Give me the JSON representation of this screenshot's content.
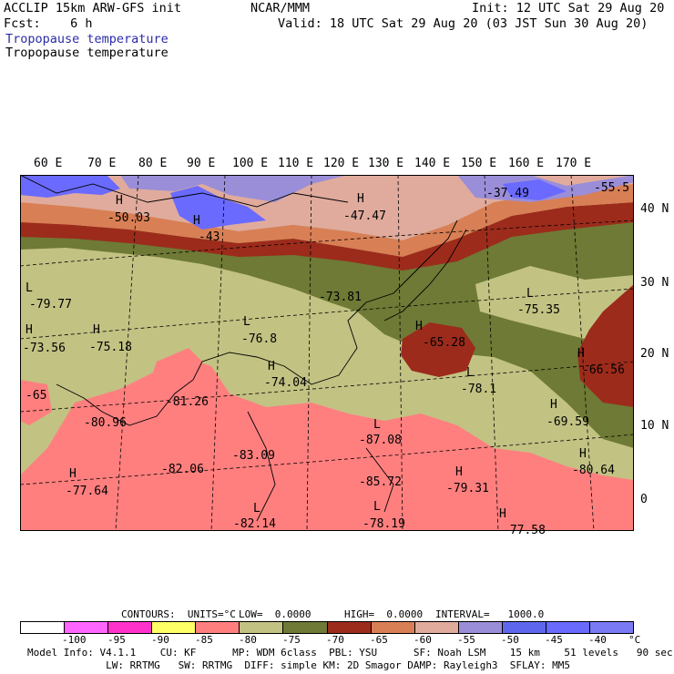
{
  "header": {
    "line1_left": "ACCLIP 15km ARW-GFS init",
    "line1_center": "NCAR/MMM",
    "line1_right": "Init: 12 UTC Sat 29 Aug 20",
    "line2_left": "Fcst:    6 h",
    "line2_right": "Valid: 18 UTC Sat 29 Aug 20 (03 JST Sun 30 Aug 20)",
    "field_title_1": "Tropopause temperature",
    "field_title_2": "Tropopause temperature"
  },
  "lon_labels": [
    "60 E",
    "70 E",
    "80 E",
    "90 E",
    "100 E",
    "110 E",
    "120 E",
    "130 E",
    "140 E",
    "150 E",
    "160 E",
    "170 E"
  ],
  "lat_labels": [
    "40 N",
    "30 N",
    "20 N",
    "10 N",
    "0"
  ],
  "map_labels": [
    {
      "text": "H"
    },
    {
      "text": "-50.03"
    },
    {
      "text": "H"
    },
    {
      "text": "-43"
    },
    {
      "text": "H"
    },
    {
      "text": "-47.47"
    },
    {
      "text": "-37.49"
    },
    {
      "text": "-55.5"
    },
    {
      "text": "L"
    },
    {
      "text": "-79.77"
    },
    {
      "text": "H"
    },
    {
      "text": "-73.56"
    },
    {
      "text": "H"
    },
    {
      "text": "-75.18"
    },
    {
      "text": "L"
    },
    {
      "text": "-76.8"
    },
    {
      "text": "-73.81"
    },
    {
      "text": "L"
    },
    {
      "text": "-75.35"
    },
    {
      "text": "H"
    },
    {
      "text": "-65.28"
    },
    {
      "text": "H"
    },
    {
      "text": "-66.56"
    },
    {
      "text": "H"
    },
    {
      "text": "-74.04"
    },
    {
      "text": "L"
    },
    {
      "text": "-78.1"
    },
    {
      "text": "-81.26"
    },
    {
      "text": "-65"
    },
    {
      "text": "-80.96"
    },
    {
      "text": "H"
    },
    {
      "text": "-69.59"
    },
    {
      "text": "L"
    },
    {
      "text": "-87.08"
    },
    {
      "text": "-83.09"
    },
    {
      "text": "-82.06"
    },
    {
      "text": "H"
    },
    {
      "text": "-80.64"
    },
    {
      "text": "H"
    },
    {
      "text": "-77.64"
    },
    {
      "text": "-85.72"
    },
    {
      "text": "H"
    },
    {
      "text": "-79.31"
    },
    {
      "text": "L"
    },
    {
      "text": "-82.14"
    },
    {
      "text": "L"
    },
    {
      "text": "-78.19"
    },
    {
      "text": "H"
    },
    {
      "text": "-77.58"
    }
  ],
  "contours": {
    "units_label": "CONTOURS:  UNITS=°C",
    "low_label": "LOW=  0.0000",
    "high_label": "HIGH=  0.0000",
    "interval_label": "INTERVAL=   1000.0"
  },
  "colorbar": {
    "colors": [
      "#ffffff",
      "#ff66ff",
      "#ff33cc",
      "#ffff66",
      "#ff7f7f",
      "#c2c283",
      "#6e7a35",
      "#9c2b1c",
      "#d97f55",
      "#e0ab9d",
      "#9a8ed8",
      "#5f66ee",
      "#6a6aff",
      "#7a7af5"
    ],
    "tick_labels": [
      "-100",
      "-95",
      "-90",
      "-85",
      "-80",
      "-75",
      "-70",
      "-65",
      "-60",
      "-55",
      "-50",
      "-45",
      "-40"
    ],
    "unit": "°C"
  },
  "footer": {
    "line1": "Model Info: V4.1.1    CU: KF      MP: WDM 6class  PBL: YSU      SF: Noah LSM    15 km    51 levels   90 sec",
    "line2": "             LW: RRTMG   SW: RRTMG  DIFF: simple KM: 2D Smagor DAMP: Rayleigh3  SFLAY: MM5"
  }
}
